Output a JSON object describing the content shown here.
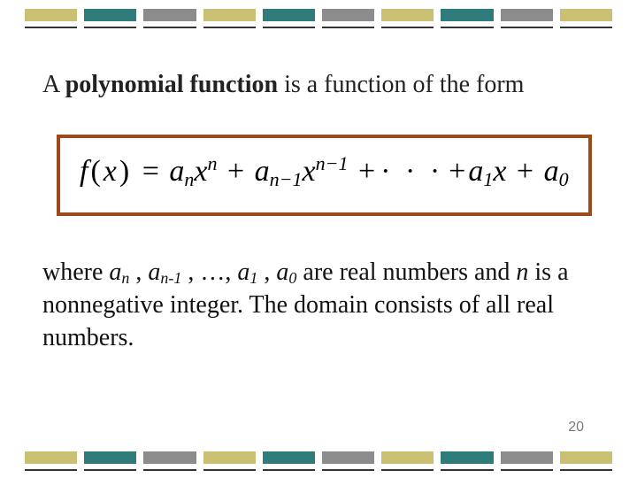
{
  "decorative_band": {
    "colors": [
      "#c9c074",
      "#2f7c7a",
      "#8c8c8c",
      "#c9c074",
      "#2f7c7a",
      "#8c8c8c",
      "#c9c074",
      "#2f7c7a",
      "#8c8c8c",
      "#c9c074"
    ],
    "rule_color": "#333333"
  },
  "intro": {
    "prefix": "A ",
    "keyword": "polynomial function",
    "suffix": " is a function of the form"
  },
  "formula": {
    "border_color": "#9c4a1a",
    "lhs_f": "f",
    "lhs_x": "x",
    "eq": "=",
    "a": "a",
    "x": "x",
    "n": "n",
    "n_minus_1": "n−1",
    "one": "1",
    "zero": "0",
    "plus": "+",
    "dots": "· · ·"
  },
  "description": {
    "text_parts": {
      "p1": "where ",
      "p2": " , ",
      "p3": " , …, ",
      "p4": " , ",
      "p5": " are real numbers and ",
      "p6": " is a nonnegative integer.  The domain consists of all real numbers."
    },
    "vars": {
      "a": "a",
      "n": "n",
      "n_minus_1": "n-1",
      "one": "1",
      "zero": "0"
    }
  },
  "page_number": "20"
}
